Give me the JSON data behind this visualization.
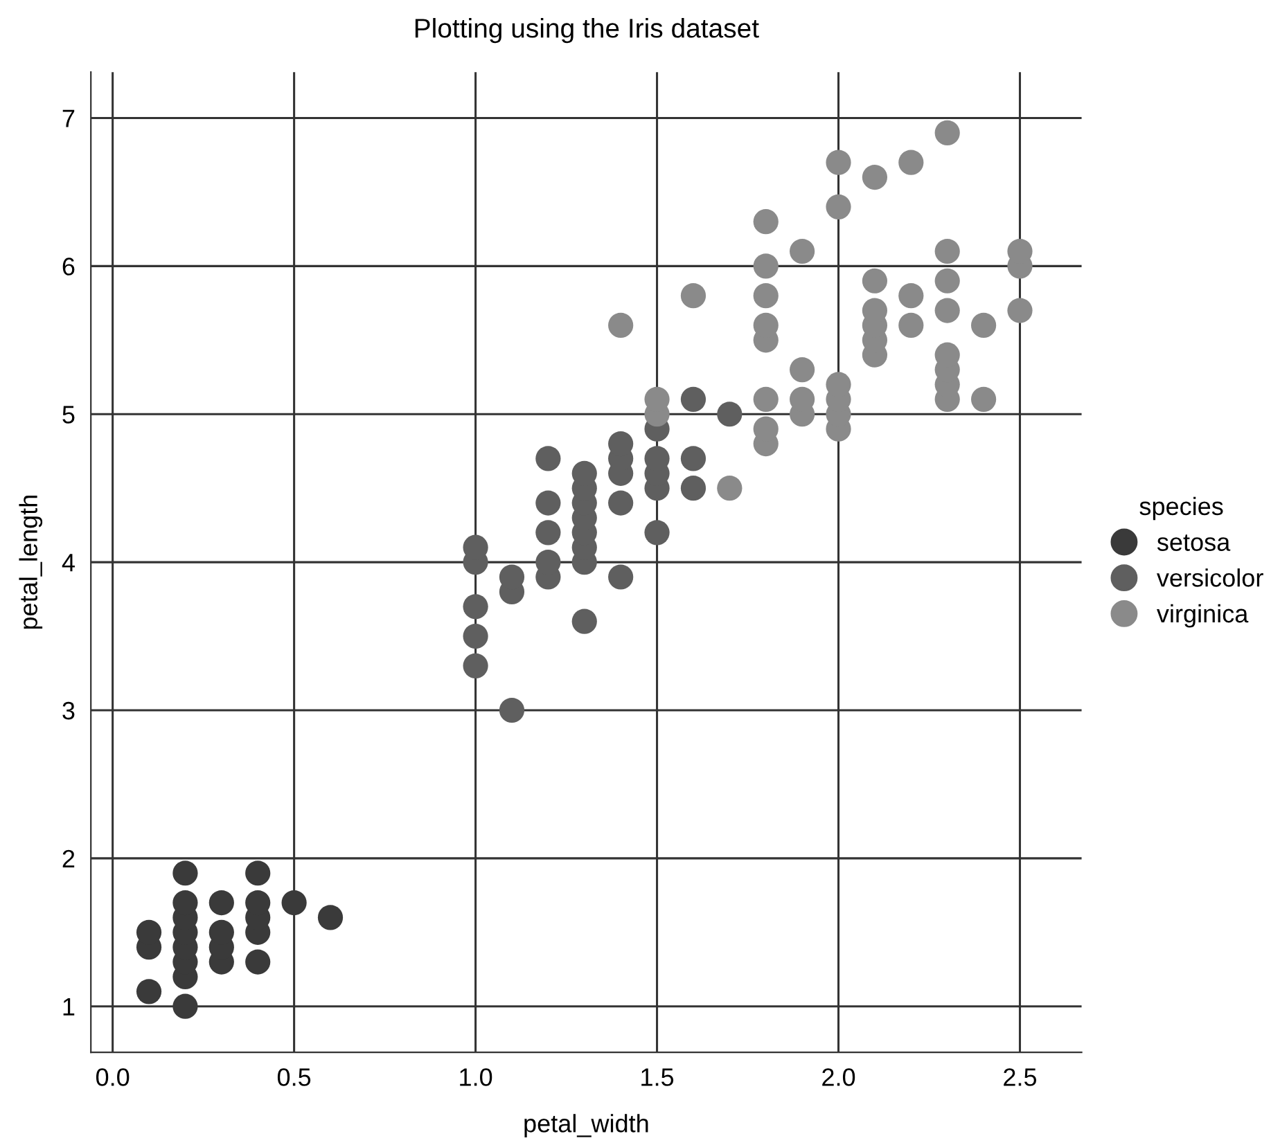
{
  "chart_data": {
    "type": "scatter",
    "title": "Plotting using the Iris dataset",
    "xlabel": "petal_width",
    "ylabel": "petal_length",
    "legend_title": "species",
    "xlim": [
      -0.06,
      2.67
    ],
    "ylim": [
      0.69,
      7.31
    ],
    "xticks": [
      {
        "value": 0,
        "label": "0.0"
      },
      0.5,
      {
        "value": 1,
        "label": "1.0"
      },
      1.5,
      {
        "value": 2,
        "label": "2.0"
      },
      2.5
    ],
    "yticks": [
      1,
      2,
      3,
      4,
      5,
      6,
      7
    ],
    "grid": true,
    "legend": "right",
    "marker": "circle",
    "series": [
      {
        "name": "setosa",
        "color": "#3a3a3a",
        "x": [
          0.1,
          0.1,
          0.1,
          0.2,
          0.2,
          0.2,
          0.2,
          0.2,
          0.2,
          0.2,
          0.2,
          0.3,
          0.3,
          0.3,
          0.3,
          0.4,
          0.4,
          0.4,
          0.4,
          0.4,
          0.5,
          0.6
        ],
        "values": [
          1.1,
          1.4,
          1.5,
          1.0,
          1.2,
          1.3,
          1.4,
          1.5,
          1.6,
          1.7,
          1.9,
          1.3,
          1.4,
          1.5,
          1.7,
          1.3,
          1.5,
          1.6,
          1.7,
          1.9,
          1.7,
          1.6
        ]
      },
      {
        "name": "versicolor",
        "color": "#5f5f5f",
        "x": [
          1.0,
          1.0,
          1.0,
          1.0,
          1.0,
          1.1,
          1.1,
          1.1,
          1.2,
          1.2,
          1.2,
          1.2,
          1.2,
          1.3,
          1.3,
          1.3,
          1.3,
          1.3,
          1.3,
          1.3,
          1.3,
          1.4,
          1.4,
          1.4,
          1.4,
          1.4,
          1.5,
          1.5,
          1.5,
          1.5,
          1.5,
          1.6,
          1.6,
          1.6,
          1.7
        ],
        "values": [
          3.3,
          3.5,
          3.7,
          4.0,
          4.1,
          3.0,
          3.8,
          3.9,
          3.9,
          4.0,
          4.2,
          4.4,
          4.7,
          3.6,
          4.0,
          4.1,
          4.2,
          4.3,
          4.4,
          4.5,
          4.6,
          3.9,
          4.4,
          4.6,
          4.7,
          4.8,
          4.2,
          4.5,
          4.6,
          4.7,
          4.9,
          4.5,
          4.7,
          5.1,
          5.0
        ]
      },
      {
        "name": "virginica",
        "color": "#8a8a8a",
        "x": [
          1.4,
          1.5,
          1.5,
          1.6,
          1.7,
          1.8,
          1.8,
          1.8,
          1.8,
          1.8,
          1.8,
          1.8,
          1.8,
          1.9,
          1.9,
          1.9,
          1.9,
          2.0,
          2.0,
          2.0,
          2.0,
          2.0,
          2.0,
          2.1,
          2.1,
          2.1,
          2.1,
          2.1,
          2.1,
          2.2,
          2.2,
          2.2,
          2.3,
          2.3,
          2.3,
          2.3,
          2.3,
          2.3,
          2.3,
          2.3,
          2.4,
          2.4,
          2.5,
          2.5,
          2.5
        ],
        "values": [
          5.6,
          5.0,
          5.1,
          5.8,
          4.5,
          4.8,
          4.9,
          5.1,
          5.5,
          5.6,
          5.8,
          6.0,
          6.3,
          5.0,
          5.1,
          5.3,
          6.1,
          4.9,
          5.0,
          5.1,
          5.2,
          6.4,
          6.7,
          5.4,
          5.5,
          5.6,
          5.7,
          5.9,
          6.6,
          5.6,
          5.8,
          6.7,
          5.1,
          5.2,
          5.3,
          5.4,
          5.7,
          5.9,
          6.1,
          6.9,
          5.1,
          5.6,
          5.7,
          6.0,
          6.1
        ]
      }
    ]
  }
}
